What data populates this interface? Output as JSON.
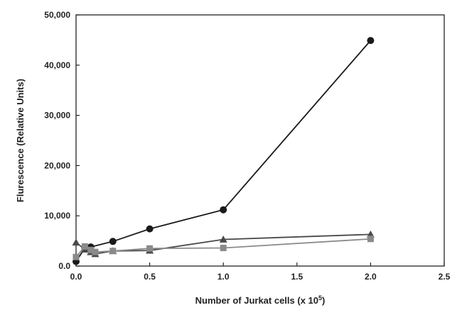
{
  "chart_data": {
    "type": "line",
    "title": "",
    "xlabel": "Number of Jurkat cells (x 10",
    "xlabel_sup": "5",
    "xlabel_close": ")",
    "ylabel": "Flurescence (Relative Units)",
    "xlim": [
      0,
      2.5
    ],
    "ylim": [
      0,
      50000
    ],
    "grid": false,
    "xticks": [
      0.0,
      0.5,
      1.0,
      1.5,
      2.0,
      2.5
    ],
    "xtick_labels": [
      "0.0",
      "0.5",
      "1.0",
      "1.5",
      "2.0",
      "2.5"
    ],
    "yticks": [
      0,
      10000,
      20000,
      30000,
      40000,
      50000
    ],
    "ytick_labels": [
      "0.0",
      "10,000",
      "20,000",
      "30,000",
      "40,000",
      "50,000"
    ],
    "series": [
      {
        "marker": "circle",
        "color": "#1a1a1a",
        "x": [
          0.0,
          0.06,
          0.1,
          0.25,
          0.5,
          1.0,
          2.0
        ],
        "y": [
          900,
          3600,
          3800,
          4900,
          7400,
          11200,
          44900
        ]
      },
      {
        "marker": "triangle",
        "color": "#4a4a4a",
        "x": [
          0.0,
          0.06,
          0.1,
          0.13,
          0.25,
          0.5,
          1.0,
          2.0
        ],
        "y": [
          4700,
          3300,
          2800,
          2400,
          3000,
          3100,
          5300,
          6300
        ]
      },
      {
        "marker": "square",
        "color": "#8a8a8a",
        "x": [
          0.0,
          0.06,
          0.1,
          0.13,
          0.25,
          0.5,
          1.0,
          2.0
        ],
        "y": [
          1800,
          3900,
          3200,
          2800,
          3000,
          3500,
          3600,
          5400
        ]
      }
    ]
  }
}
